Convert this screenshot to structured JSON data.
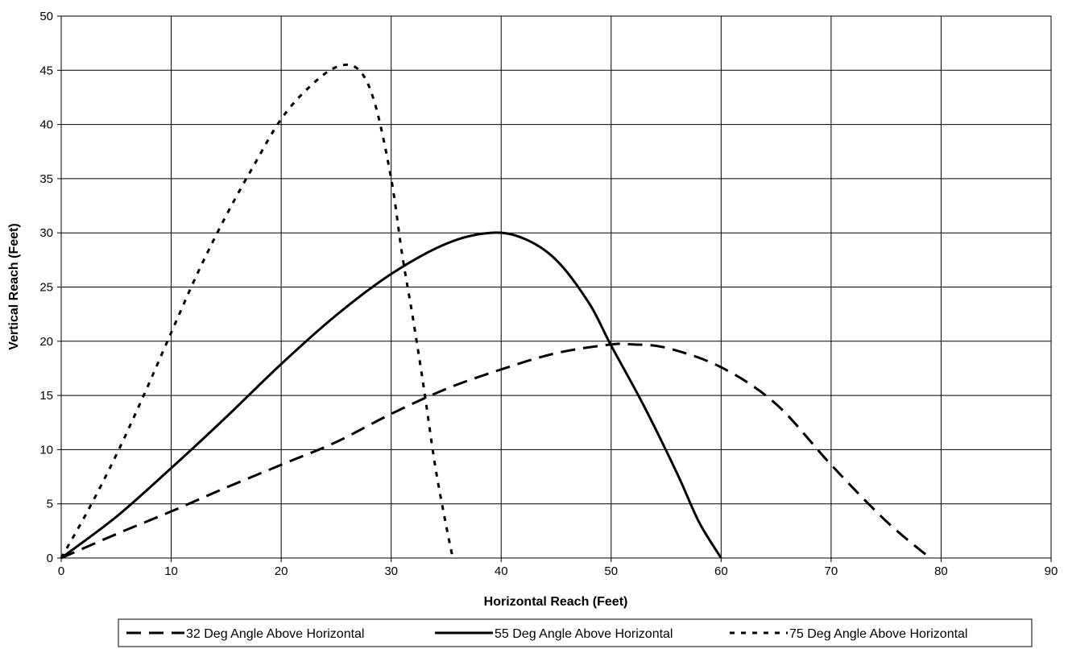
{
  "chart_data": {
    "type": "line",
    "xlabel": "Horizontal Reach (Feet)",
    "ylabel": "Vertical Reach (Feet)",
    "xlim": [
      0,
      90
    ],
    "ylim": [
      0,
      50
    ],
    "xticks": [
      0,
      10,
      20,
      30,
      40,
      50,
      60,
      70,
      80,
      90
    ],
    "yticks": [
      0,
      5,
      10,
      15,
      20,
      25,
      30,
      35,
      40,
      45,
      50
    ],
    "grid": true,
    "legend_position": "bottom",
    "series": [
      {
        "name": "32 Deg Angle Above Horizontal",
        "line_style": "dashed",
        "color": "#000000",
        "points": [
          [
            0,
            0
          ],
          [
            5,
            2.2
          ],
          [
            10,
            4.3
          ],
          [
            15,
            6.5
          ],
          [
            20,
            8.6
          ],
          [
            25,
            10.7
          ],
          [
            30,
            13.3
          ],
          [
            35,
            15.6
          ],
          [
            40,
            17.4
          ],
          [
            45,
            18.9
          ],
          [
            50,
            19.7
          ],
          [
            52,
            19.7
          ],
          [
            55,
            19.4
          ],
          [
            60,
            17.6
          ],
          [
            65,
            14.2
          ],
          [
            70,
            8.6
          ],
          [
            75,
            3.4
          ],
          [
            79,
            0
          ]
        ]
      },
      {
        "name": "55 Deg Angle Above Horizontal",
        "line_style": "solid",
        "color": "#000000",
        "points": [
          [
            0,
            0
          ],
          [
            5,
            3.8
          ],
          [
            10,
            8.3
          ],
          [
            15,
            13.0
          ],
          [
            20,
            17.9
          ],
          [
            25,
            22.4
          ],
          [
            30,
            26.2
          ],
          [
            35,
            29.0
          ],
          [
            39,
            30.0
          ],
          [
            42,
            29.5
          ],
          [
            45,
            27.5
          ],
          [
            48,
            23.5
          ],
          [
            50,
            19.6
          ],
          [
            53,
            14.0
          ],
          [
            56,
            7.8
          ],
          [
            58,
            3.3
          ],
          [
            60,
            0
          ]
        ]
      },
      {
        "name": "75 Deg Angle Above Horizontal",
        "line_style": "dotted",
        "color": "#000000",
        "points": [
          [
            0,
            0
          ],
          [
            2.5,
            4.5
          ],
          [
            5,
            9.5
          ],
          [
            7.5,
            15.0
          ],
          [
            10,
            20.8
          ],
          [
            12.5,
            26.5
          ],
          [
            15,
            31.6
          ],
          [
            17.5,
            36.2
          ],
          [
            20,
            40.5
          ],
          [
            22.5,
            43.4
          ],
          [
            25,
            45.3
          ],
          [
            27,
            45.1
          ],
          [
            28.5,
            42.0
          ],
          [
            30,
            35.0
          ],
          [
            31,
            28.0
          ],
          [
            32,
            22.0
          ],
          [
            33,
            15.5
          ],
          [
            34,
            8.5
          ],
          [
            35,
            3.0
          ],
          [
            35.6,
            0
          ]
        ]
      }
    ]
  }
}
